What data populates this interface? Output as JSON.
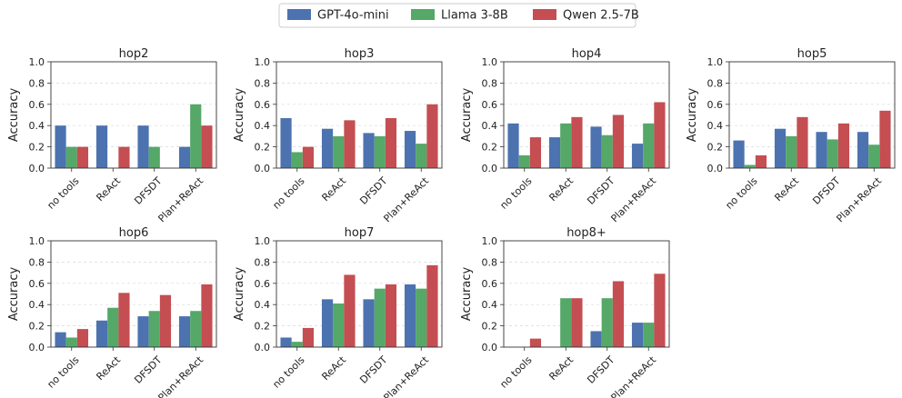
{
  "legend": {
    "position": "top-center",
    "items": [
      {
        "name": "GPT-4o-mini",
        "color": "#4c72b0"
      },
      {
        "name": "Llama 3-8B",
        "color": "#55a868"
      },
      {
        "name": "Qwen 2.5-7B",
        "color": "#c44e52"
      }
    ]
  },
  "chart_data": [
    {
      "type": "bar",
      "title": "hop2",
      "xlabel": "",
      "ylabel": "Accuracy",
      "ylim": [
        0,
        1.0
      ],
      "yticks": [
        "0.0",
        "0.2",
        "0.4",
        "0.6",
        "0.8",
        "1.0"
      ],
      "categories": [
        "no tools",
        "ReAct",
        "DFSDT",
        "Plan+ReAct"
      ],
      "series": [
        {
          "name": "GPT-4o-mini",
          "values": [
            0.4,
            0.4,
            0.4,
            0.2
          ]
        },
        {
          "name": "Llama 3-8B",
          "values": [
            0.2,
            0.0,
            0.2,
            0.6
          ]
        },
        {
          "name": "Qwen 2.5-7B",
          "values": [
            0.2,
            0.2,
            0.0,
            0.4
          ]
        }
      ]
    },
    {
      "type": "bar",
      "title": "hop3",
      "xlabel": "",
      "ylabel": "Accuracy",
      "ylim": [
        0,
        1.0
      ],
      "yticks": [
        "0.0",
        "0.2",
        "0.4",
        "0.6",
        "0.8",
        "1.0"
      ],
      "categories": [
        "no tools",
        "ReAct",
        "DFSDT",
        "Plan+ReAct"
      ],
      "series": [
        {
          "name": "GPT-4o-mini",
          "values": [
            0.47,
            0.37,
            0.33,
            0.35
          ]
        },
        {
          "name": "Llama 3-8B",
          "values": [
            0.15,
            0.3,
            0.3,
            0.23
          ]
        },
        {
          "name": "Qwen 2.5-7B",
          "values": [
            0.2,
            0.45,
            0.47,
            0.6
          ]
        }
      ]
    },
    {
      "type": "bar",
      "title": "hop4",
      "xlabel": "",
      "ylabel": "Accuracy",
      "ylim": [
        0,
        1.0
      ],
      "yticks": [
        "0.0",
        "0.2",
        "0.4",
        "0.6",
        "0.8",
        "1.0"
      ],
      "categories": [
        "no tools",
        "ReAct",
        "DFSDT",
        "Plan+ReAct"
      ],
      "series": [
        {
          "name": "GPT-4o-mini",
          "values": [
            0.42,
            0.29,
            0.39,
            0.23
          ]
        },
        {
          "name": "Llama 3-8B",
          "values": [
            0.12,
            0.42,
            0.31,
            0.42
          ]
        },
        {
          "name": "Qwen 2.5-7B",
          "values": [
            0.29,
            0.48,
            0.5,
            0.62
          ]
        }
      ]
    },
    {
      "type": "bar",
      "title": "hop5",
      "xlabel": "",
      "ylabel": "Accuracy",
      "ylim": [
        0,
        1.0
      ],
      "yticks": [
        "0.0",
        "0.2",
        "0.4",
        "0.6",
        "0.8",
        "1.0"
      ],
      "categories": [
        "no tools",
        "ReAct",
        "DFSDT",
        "Plan+ReAct"
      ],
      "series": [
        {
          "name": "GPT-4o-mini",
          "values": [
            0.26,
            0.37,
            0.34,
            0.34
          ]
        },
        {
          "name": "Llama 3-8B",
          "values": [
            0.03,
            0.3,
            0.27,
            0.22
          ]
        },
        {
          "name": "Qwen 2.5-7B",
          "values": [
            0.12,
            0.48,
            0.42,
            0.54
          ]
        }
      ]
    },
    {
      "type": "bar",
      "title": "hop6",
      "xlabel": "",
      "ylabel": "Accuracy",
      "ylim": [
        0,
        1.0
      ],
      "yticks": [
        "0.0",
        "0.2",
        "0.4",
        "0.6",
        "0.8",
        "1.0"
      ],
      "categories": [
        "no tools",
        "ReAct",
        "DFSDT",
        "Plan+ReAct"
      ],
      "series": [
        {
          "name": "GPT-4o-mini",
          "values": [
            0.14,
            0.25,
            0.29,
            0.29
          ]
        },
        {
          "name": "Llama 3-8B",
          "values": [
            0.09,
            0.37,
            0.34,
            0.34
          ]
        },
        {
          "name": "Qwen 2.5-7B",
          "values": [
            0.17,
            0.51,
            0.49,
            0.59
          ]
        }
      ]
    },
    {
      "type": "bar",
      "title": "hop7",
      "xlabel": "",
      "ylabel": "Accuracy",
      "ylim": [
        0,
        1.0
      ],
      "yticks": [
        "0.0",
        "0.2",
        "0.4",
        "0.6",
        "0.8",
        "1.0"
      ],
      "categories": [
        "no tools",
        "ReAct",
        "DFSDT",
        "Plan+ReAct"
      ],
      "series": [
        {
          "name": "GPT-4o-mini",
          "values": [
            0.09,
            0.45,
            0.45,
            0.59
          ]
        },
        {
          "name": "Llama 3-8B",
          "values": [
            0.05,
            0.41,
            0.55,
            0.55
          ]
        },
        {
          "name": "Qwen 2.5-7B",
          "values": [
            0.18,
            0.68,
            0.59,
            0.77
          ]
        }
      ]
    },
    {
      "type": "bar",
      "title": "hop8+",
      "xlabel": "",
      "ylabel": "Accuracy",
      "ylim": [
        0,
        1.0
      ],
      "yticks": [
        "0.0",
        "0.2",
        "0.4",
        "0.6",
        "0.8",
        "1.0"
      ],
      "categories": [
        "no tools",
        "ReAct",
        "DFSDT",
        "Plan+ReAct"
      ],
      "series": [
        {
          "name": "GPT-4o-mini",
          "values": [
            0.0,
            0.0,
            0.15,
            0.23
          ]
        },
        {
          "name": "Llama 3-8B",
          "values": [
            0.0,
            0.46,
            0.46,
            0.23
          ]
        },
        {
          "name": "Qwen 2.5-7B",
          "values": [
            0.08,
            0.46,
            0.62,
            0.69
          ]
        }
      ]
    }
  ]
}
